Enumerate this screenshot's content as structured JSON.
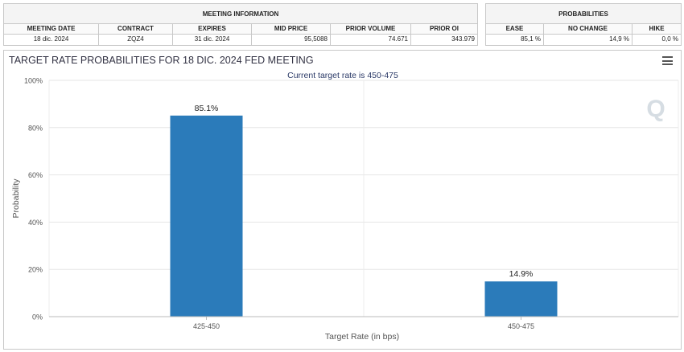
{
  "meeting_table": {
    "title": "MEETING INFORMATION",
    "columns": [
      "MEETING DATE",
      "CONTRACT",
      "EXPIRES",
      "MID PRICE",
      "PRIOR VOLUME",
      "PRIOR OI"
    ],
    "row": [
      "18 dic. 2024",
      "ZQZ4",
      "31 dic. 2024",
      "95,5088",
      "74.671",
      "343.979"
    ]
  },
  "prob_table": {
    "title": "PROBABILITIES",
    "columns": [
      "EASE",
      "NO CHANGE",
      "HIKE"
    ],
    "row": [
      "85,1 %",
      "14,9 %",
      "0,0 %"
    ]
  },
  "watermark": "Q",
  "chart_data": {
    "type": "bar",
    "title": "TARGET RATE PROBABILITIES FOR 18 DIC. 2024 FED MEETING",
    "subtitle": "Current target rate is 450-475",
    "xlabel": "Target Rate (in bps)",
    "ylabel": "Probability",
    "categories": [
      "425-450",
      "450-475"
    ],
    "values": [
      85.1,
      14.9
    ],
    "data_labels": [
      "85.1%",
      "14.9%"
    ],
    "ylim": [
      0,
      100
    ],
    "yticks": [
      0,
      20,
      40,
      60,
      80,
      100
    ],
    "ytick_labels": [
      "0%",
      "20%",
      "40%",
      "60%",
      "80%",
      "100%"
    ],
    "grid": true,
    "legend": "none",
    "bar_color": "#2b7bba",
    "title_color": "#333344",
    "subtitle_color": "#2b3a67"
  }
}
